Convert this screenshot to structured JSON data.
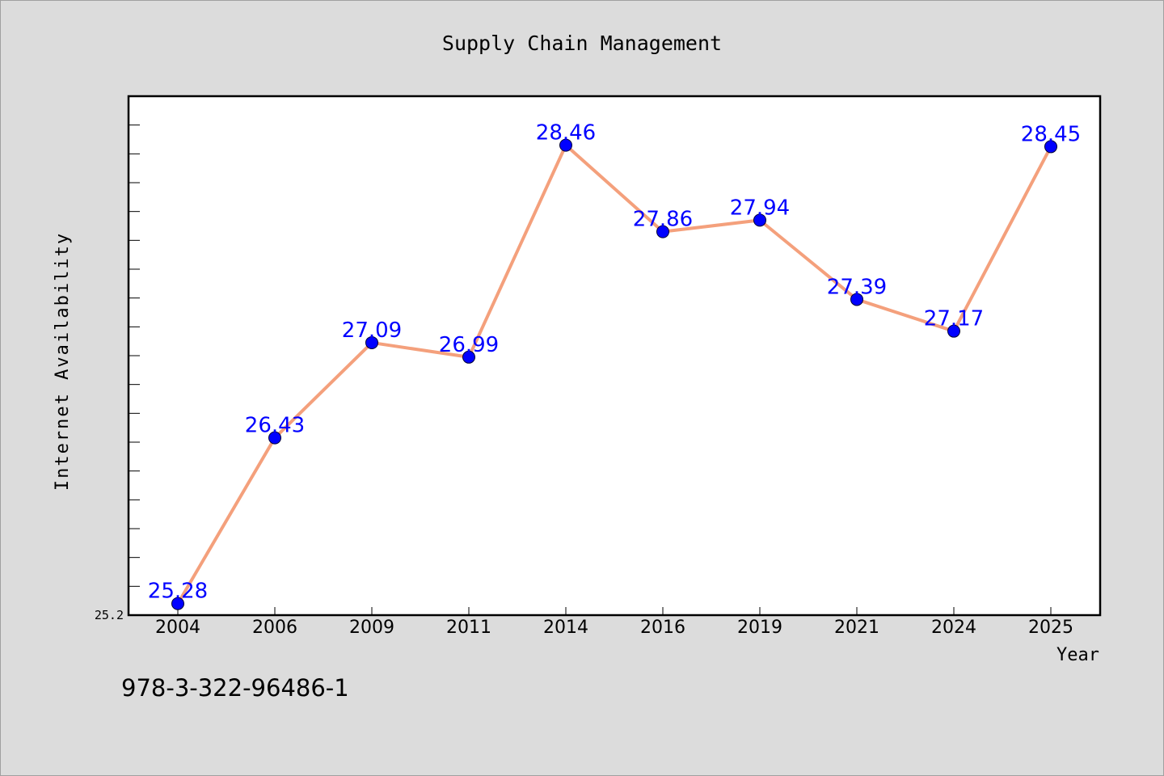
{
  "chart_data": {
    "type": "line",
    "title": "Supply Chain Management",
    "xlabel": "Year",
    "ylabel": "Internet Availability",
    "categories": [
      "2004",
      "2006",
      "2009",
      "2011",
      "2014",
      "2016",
      "2019",
      "2021",
      "2024",
      "2025"
    ],
    "series": [
      {
        "values": [
          25.28,
          26.43,
          27.09,
          26.99,
          28.46,
          27.86,
          27.94,
          27.39,
          27.17,
          28.45
        ]
      }
    ],
    "y_tick_labels": [
      "25.2"
    ],
    "ylim": [
      25.2,
      28.8
    ],
    "grid": false,
    "colors": {
      "line": "#f4a07c",
      "marker": "#0000ff",
      "label": "#0000ff"
    }
  },
  "footer": {
    "isbn": "978-3-322-96486-1"
  }
}
